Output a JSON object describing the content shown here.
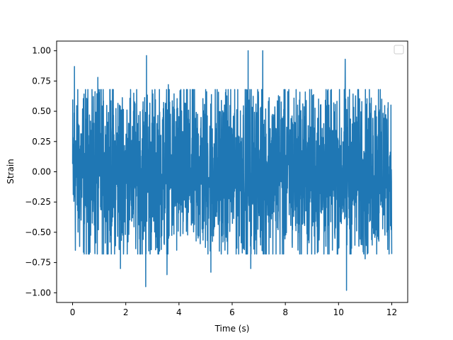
{
  "chart_data": {
    "type": "line",
    "title": "",
    "xlabel": "Time (s)",
    "ylabel": "Strain",
    "xlim": [
      -0.6,
      12.6
    ],
    "ylim": [
      -1.08,
      1.08
    ],
    "xticks": [
      0,
      2,
      4,
      6,
      8,
      10,
      12
    ],
    "xtick_labels": [
      "0",
      "2",
      "4",
      "6",
      "8",
      "10",
      "12"
    ],
    "yticks": [
      -1.0,
      -0.75,
      -0.5,
      -0.25,
      0.0,
      0.25,
      0.5,
      0.75,
      1.0
    ],
    "ytick_labels": [
      "−1.00",
      "−0.75",
      "−0.50",
      "−0.25",
      "0.00",
      "0.25",
      "0.50",
      "0.75",
      "1.00"
    ],
    "grid": false,
    "legend": {
      "position": "top-right",
      "entries": []
    },
    "series": [
      {
        "color": "#1f77b4",
        "description": "dense noisy oscillating signal sampled from 0 to 12 s",
        "x_range": [
          0,
          12
        ],
        "typical_amplitude": 0.35,
        "peaks": [
          {
            "x": 0.07,
            "y": 0.87
          },
          {
            "x": 0.95,
            "y": 0.78
          },
          {
            "x": 2.78,
            "y": 0.96
          },
          {
            "x": 3.6,
            "y": 0.72
          },
          {
            "x": 6.6,
            "y": 1.0
          },
          {
            "x": 7.15,
            "y": 1.0
          },
          {
            "x": 10.25,
            "y": 0.93
          },
          {
            "x": 11.5,
            "y": 0.68
          }
        ],
        "troughs": [
          {
            "x": 1.8,
            "y": -0.8
          },
          {
            "x": 2.75,
            "y": -0.95
          },
          {
            "x": 3.55,
            "y": -0.85
          },
          {
            "x": 5.2,
            "y": -0.83
          },
          {
            "x": 6.7,
            "y": -0.8
          },
          {
            "x": 10.3,
            "y": -0.98
          },
          {
            "x": 11.0,
            "y": -0.72
          }
        ]
      }
    ]
  }
}
